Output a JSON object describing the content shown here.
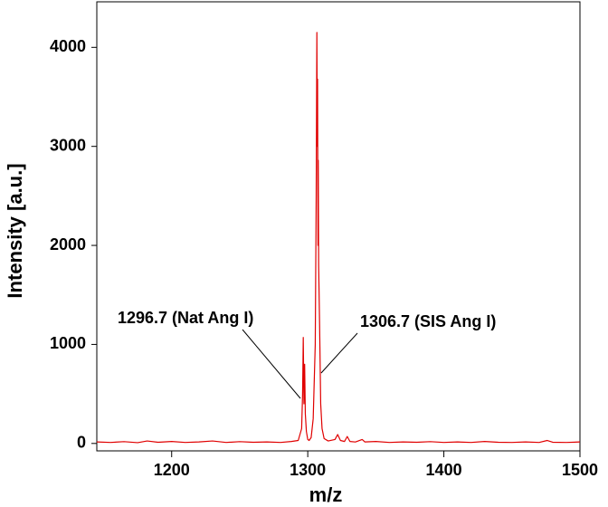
{
  "chart_data": {
    "type": "line",
    "x_label": "m/z",
    "y_label": "Intensity [a.u.]",
    "annotations": [
      "1296.7 (Nat Ang I)",
      "1306.7 (SIS Ang I)"
    ],
    "color": "#e00000",
    "x": [
      1145,
      1155,
      1165,
      1175,
      1182,
      1190,
      1200,
      1210,
      1220,
      1230,
      1240,
      1250,
      1260,
      1270,
      1280,
      1288,
      1293,
      1295.5,
      1296.2,
      1296.7,
      1297.2,
      1297.7,
      1298.2,
      1299,
      1300,
      1301,
      1302.5,
      1304,
      1305.5,
      1306.2,
      1306.7,
      1307.0,
      1307.2,
      1307.5,
      1307.7,
      1308,
      1308.7,
      1309.5,
      1310.5,
      1312,
      1315,
      1320,
      1322,
      1324,
      1327,
      1329,
      1331,
      1335,
      1340,
      1342,
      1350,
      1360,
      1370,
      1380,
      1390,
      1400,
      1410,
      1420,
      1430,
      1440,
      1450,
      1460,
      1470,
      1476,
      1480,
      1490,
      1500
    ],
    "values": [
      15,
      10,
      18,
      8,
      25,
      12,
      20,
      10,
      15,
      25,
      10,
      18,
      12,
      15,
      10,
      20,
      30,
      150,
      500,
      1070,
      400,
      800,
      300,
      120,
      40,
      30,
      60,
      250,
      1000,
      2500,
      4150,
      3000,
      3680,
      2000,
      2860,
      1800,
      1200,
      400,
      150,
      50,
      25,
      40,
      90,
      30,
      20,
      70,
      20,
      15,
      40,
      15,
      20,
      10,
      15,
      12,
      18,
      10,
      15,
      10,
      20,
      12,
      10,
      15,
      10,
      30,
      12,
      10,
      15
    ],
    "xlim": [
      1145,
      1500
    ],
    "ylim": [
      -75,
      4460
    ],
    "xticks": [
      1200,
      1300,
      1400,
      1500
    ],
    "yticks": [
      0,
      1000,
      2000,
      3000,
      4000
    ],
    "grid": false
  }
}
